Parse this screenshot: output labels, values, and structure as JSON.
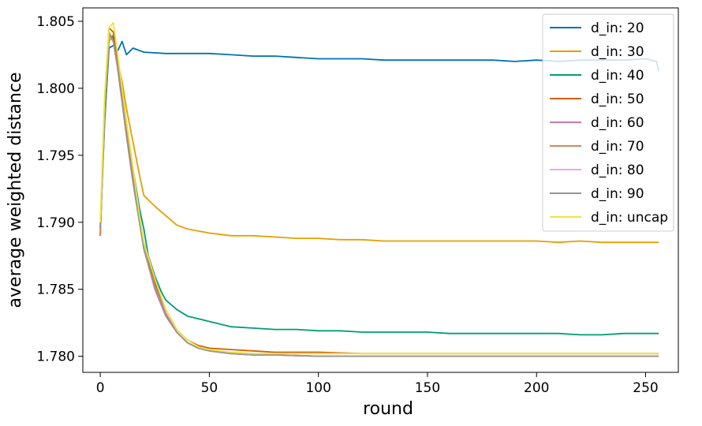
{
  "chart_data": {
    "type": "line",
    "title": "",
    "xlabel": "round",
    "ylabel": "average weighted distance",
    "xlim": [
      -8,
      265
    ],
    "ylim": [
      1.7788,
      1.806
    ],
    "xticks": [
      0,
      50,
      100,
      150,
      200,
      250
    ],
    "yticks": [
      1.78,
      1.785,
      1.79,
      1.795,
      1.8,
      1.805
    ],
    "ytick_labels": [
      "1.780",
      "1.785",
      "1.790",
      "1.795",
      "1.800",
      "1.805"
    ],
    "grid": false,
    "legend_position": "top-right",
    "series": [
      {
        "name": "d_in: 20",
        "color": "#0072b2",
        "points": [
          [
            0,
            1.7895
          ],
          [
            2,
            1.7975
          ],
          [
            4,
            1.803
          ],
          [
            6,
            1.8032
          ],
          [
            8,
            1.8028
          ],
          [
            10,
            1.8035
          ],
          [
            12,
            1.8025
          ],
          [
            15,
            1.803
          ],
          [
            20,
            1.8027
          ],
          [
            30,
            1.8026
          ],
          [
            40,
            1.8026
          ],
          [
            50,
            1.8026
          ],
          [
            60,
            1.8025
          ],
          [
            70,
            1.8024
          ],
          [
            80,
            1.8024
          ],
          [
            90,
            1.8023
          ],
          [
            100,
            1.8022
          ],
          [
            110,
            1.8022
          ],
          [
            120,
            1.8022
          ],
          [
            130,
            1.8021
          ],
          [
            140,
            1.8021
          ],
          [
            150,
            1.8021
          ],
          [
            160,
            1.8021
          ],
          [
            170,
            1.8021
          ],
          [
            180,
            1.8021
          ],
          [
            190,
            1.802
          ],
          [
            200,
            1.8021
          ],
          [
            210,
            1.802
          ],
          [
            220,
            1.8021
          ],
          [
            230,
            1.8021
          ],
          [
            240,
            1.8021
          ],
          [
            250,
            1.8022
          ],
          [
            255,
            1.802
          ],
          [
            256,
            1.8013
          ]
        ]
      },
      {
        "name": "d_in: 30",
        "color": "#e69f00",
        "points": [
          [
            0,
            1.789
          ],
          [
            2,
            1.798
          ],
          [
            4,
            1.8035
          ],
          [
            6,
            1.804
          ],
          [
            8,
            1.802
          ],
          [
            10,
            1.8005
          ],
          [
            12,
            1.7985
          ],
          [
            15,
            1.796
          ],
          [
            18,
            1.7935
          ],
          [
            20,
            1.792
          ],
          [
            25,
            1.7912
          ],
          [
            30,
            1.7905
          ],
          [
            35,
            1.7898
          ],
          [
            40,
            1.7895
          ],
          [
            50,
            1.7892
          ],
          [
            60,
            1.789
          ],
          [
            70,
            1.789
          ],
          [
            80,
            1.7889
          ],
          [
            90,
            1.7888
          ],
          [
            100,
            1.7888
          ],
          [
            110,
            1.7887
          ],
          [
            120,
            1.7887
          ],
          [
            130,
            1.7886
          ],
          [
            140,
            1.7886
          ],
          [
            150,
            1.7886
          ],
          [
            160,
            1.7886
          ],
          [
            170,
            1.7886
          ],
          [
            180,
            1.7886
          ],
          [
            190,
            1.7886
          ],
          [
            200,
            1.7886
          ],
          [
            210,
            1.7885
          ],
          [
            220,
            1.7886
          ],
          [
            230,
            1.7885
          ],
          [
            240,
            1.7885
          ],
          [
            250,
            1.7885
          ],
          [
            256,
            1.7885
          ]
        ]
      },
      {
        "name": "d_in: 40",
        "color": "#009e73",
        "points": [
          [
            0,
            1.789
          ],
          [
            2,
            1.7985
          ],
          [
            4,
            1.804
          ],
          [
            6,
            1.8038
          ],
          [
            8,
            1.802
          ],
          [
            10,
            1.8
          ],
          [
            12,
            1.7975
          ],
          [
            15,
            1.794
          ],
          [
            18,
            1.791
          ],
          [
            20,
            1.7895
          ],
          [
            22,
            1.7875
          ],
          [
            25,
            1.786
          ],
          [
            28,
            1.7848
          ],
          [
            30,
            1.7842
          ],
          [
            35,
            1.7835
          ],
          [
            40,
            1.783
          ],
          [
            45,
            1.7828
          ],
          [
            50,
            1.7826
          ],
          [
            60,
            1.7822
          ],
          [
            70,
            1.7821
          ],
          [
            80,
            1.782
          ],
          [
            90,
            1.782
          ],
          [
            100,
            1.7819
          ],
          [
            110,
            1.7819
          ],
          [
            120,
            1.7818
          ],
          [
            130,
            1.7818
          ],
          [
            140,
            1.7818
          ],
          [
            150,
            1.7818
          ],
          [
            160,
            1.7817
          ],
          [
            170,
            1.7817
          ],
          [
            180,
            1.7817
          ],
          [
            190,
            1.7817
          ],
          [
            200,
            1.7817
          ],
          [
            210,
            1.7817
          ],
          [
            220,
            1.7816
          ],
          [
            230,
            1.7816
          ],
          [
            240,
            1.7817
          ],
          [
            250,
            1.7817
          ],
          [
            256,
            1.7817
          ]
        ]
      },
      {
        "name": "d_in: 50",
        "color": "#d55e00",
        "points": [
          [
            0,
            1.789
          ],
          [
            2,
            1.799
          ],
          [
            4,
            1.8045
          ],
          [
            6,
            1.8042
          ],
          [
            8,
            1.802
          ],
          [
            10,
            1.7995
          ],
          [
            12,
            1.797
          ],
          [
            15,
            1.7935
          ],
          [
            18,
            1.7905
          ],
          [
            20,
            1.7885
          ],
          [
            25,
            1.7855
          ],
          [
            30,
            1.7835
          ],
          [
            35,
            1.782
          ],
          [
            40,
            1.7812
          ],
          [
            45,
            1.7808
          ],
          [
            50,
            1.7806
          ],
          [
            60,
            1.7805
          ],
          [
            70,
            1.7804
          ],
          [
            80,
            1.7803
          ],
          [
            90,
            1.7803
          ],
          [
            100,
            1.7803
          ],
          [
            120,
            1.7802
          ],
          [
            140,
            1.7802
          ],
          [
            160,
            1.7802
          ],
          [
            180,
            1.7802
          ],
          [
            200,
            1.7802
          ],
          [
            220,
            1.7802
          ],
          [
            240,
            1.7802
          ],
          [
            256,
            1.7802
          ]
        ]
      },
      {
        "name": "d_in: 60",
        "color": "#cc79a7",
        "points": [
          [
            0,
            1.7895
          ],
          [
            2,
            1.799
          ],
          [
            4,
            1.804
          ],
          [
            6,
            1.8035
          ],
          [
            8,
            1.8015
          ],
          [
            10,
            1.799
          ],
          [
            12,
            1.7965
          ],
          [
            15,
            1.793
          ],
          [
            18,
            1.79
          ],
          [
            20,
            1.788
          ],
          [
            25,
            1.785
          ],
          [
            30,
            1.783
          ],
          [
            35,
            1.7818
          ],
          [
            40,
            1.781
          ],
          [
            45,
            1.7806
          ],
          [
            50,
            1.7804
          ],
          [
            60,
            1.7802
          ],
          [
            70,
            1.7801
          ],
          [
            80,
            1.7801
          ],
          [
            100,
            1.78
          ],
          [
            150,
            1.78
          ],
          [
            200,
            1.78
          ],
          [
            256,
            1.78
          ]
        ]
      },
      {
        "name": "d_in: 70",
        "color": "#d4875a",
        "points": [
          [
            0,
            1.789
          ],
          [
            2,
            1.799
          ],
          [
            4,
            1.8042
          ],
          [
            6,
            1.8035
          ],
          [
            8,
            1.8015
          ],
          [
            10,
            1.799
          ],
          [
            12,
            1.7965
          ],
          [
            15,
            1.793
          ],
          [
            18,
            1.79
          ],
          [
            20,
            1.788
          ],
          [
            25,
            1.7852
          ],
          [
            30,
            1.7832
          ],
          [
            35,
            1.7818
          ],
          [
            40,
            1.781
          ],
          [
            45,
            1.7806
          ],
          [
            50,
            1.7804
          ],
          [
            60,
            1.7802
          ],
          [
            70,
            1.7801
          ],
          [
            80,
            1.7801
          ],
          [
            100,
            1.78
          ],
          [
            150,
            1.78
          ],
          [
            200,
            1.78
          ],
          [
            256,
            1.78
          ]
        ]
      },
      {
        "name": "d_in: 80",
        "color": "#f7a6e0",
        "points": [
          [
            0,
            1.7895
          ],
          [
            2,
            1.799
          ],
          [
            4,
            1.804
          ],
          [
            6,
            1.8035
          ],
          [
            8,
            1.8015
          ],
          [
            10,
            1.799
          ],
          [
            12,
            1.7965
          ],
          [
            15,
            1.793
          ],
          [
            18,
            1.79
          ],
          [
            20,
            1.788
          ],
          [
            25,
            1.7852
          ],
          [
            30,
            1.7832
          ],
          [
            35,
            1.7818
          ],
          [
            40,
            1.781
          ],
          [
            45,
            1.7806
          ],
          [
            50,
            1.7804
          ],
          [
            60,
            1.7802
          ],
          [
            70,
            1.7801
          ],
          [
            80,
            1.7801
          ],
          [
            100,
            1.78
          ],
          [
            150,
            1.78
          ],
          [
            200,
            1.78
          ],
          [
            256,
            1.78
          ]
        ]
      },
      {
        "name": "d_in: 90",
        "color": "#949494",
        "points": [
          [
            0,
            1.7895
          ],
          [
            2,
            1.799
          ],
          [
            4,
            1.804
          ],
          [
            6,
            1.8035
          ],
          [
            8,
            1.8015
          ],
          [
            10,
            1.799
          ],
          [
            12,
            1.7965
          ],
          [
            15,
            1.793
          ],
          [
            18,
            1.79
          ],
          [
            20,
            1.788
          ],
          [
            25,
            1.7852
          ],
          [
            30,
            1.7832
          ],
          [
            35,
            1.7818
          ],
          [
            40,
            1.781
          ],
          [
            45,
            1.7806
          ],
          [
            50,
            1.7804
          ],
          [
            60,
            1.7802
          ],
          [
            70,
            1.7801
          ],
          [
            80,
            1.7801
          ],
          [
            100,
            1.78
          ],
          [
            150,
            1.78
          ],
          [
            200,
            1.78
          ],
          [
            256,
            1.78
          ]
        ]
      },
      {
        "name": "d_in: uncap",
        "color": "#f0e442",
        "points": [
          [
            0,
            1.79
          ],
          [
            2,
            1.7995
          ],
          [
            4,
            1.8045
          ],
          [
            6,
            1.8049
          ],
          [
            8,
            1.8025
          ],
          [
            10,
            1.8
          ],
          [
            12,
            1.7975
          ],
          [
            15,
            1.794
          ],
          [
            18,
            1.7905
          ],
          [
            20,
            1.7885
          ],
          [
            25,
            1.7858
          ],
          [
            30,
            1.7835
          ],
          [
            35,
            1.782
          ],
          [
            40,
            1.7812
          ],
          [
            45,
            1.7807
          ],
          [
            50,
            1.7805
          ],
          [
            60,
            1.7803
          ],
          [
            70,
            1.7802
          ],
          [
            80,
            1.7802
          ],
          [
            100,
            1.7802
          ],
          [
            150,
            1.7802
          ],
          [
            200,
            1.7802
          ],
          [
            256,
            1.7802
          ]
        ]
      }
    ]
  }
}
